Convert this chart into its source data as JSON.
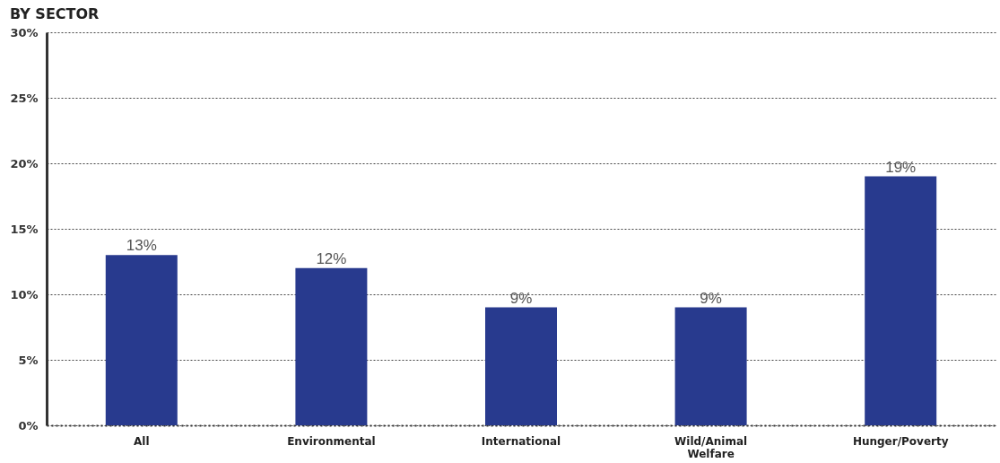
{
  "chart_data": {
    "type": "bar",
    "title": "BY SECTOR",
    "categories": [
      "All",
      "Environmental",
      "International",
      "Wild/Animal Welfare",
      "Hunger/Poverty"
    ],
    "values": [
      13,
      12,
      9,
      9,
      19
    ],
    "value_labels": [
      "13%",
      "12%",
      "9%",
      "9%",
      "19%"
    ],
    "color": "#283a8e",
    "ylim": [
      0,
      30
    ],
    "yticks": [
      {
        "value": 0,
        "label": "0%"
      },
      {
        "value": 5,
        "label": "5%"
      },
      {
        "value": 10,
        "label": "10%"
      },
      {
        "value": 15,
        "label": "15%"
      },
      {
        "value": 20,
        "label": "20%"
      },
      {
        "value": 25,
        "label": "25%"
      },
      {
        "value": 30,
        "label": "30%"
      }
    ],
    "grid": "y"
  }
}
